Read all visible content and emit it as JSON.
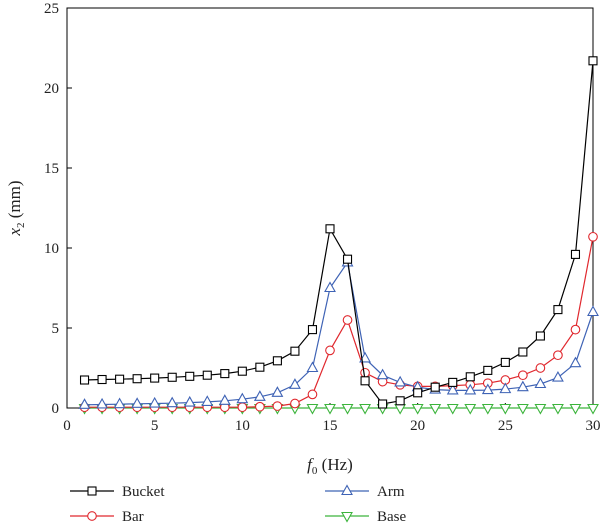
{
  "chart_data": {
    "type": "line",
    "xlabel": "Hz",
    "ylabel": "mm",
    "xlim": [
      0,
      30
    ],
    "ylim": [
      0,
      25
    ],
    "x_ticks": [
      "0",
      "5",
      "10",
      "15",
      "20",
      "25",
      "30"
    ],
    "y_ticks": [
      "0",
      "5",
      "10",
      "15",
      "20",
      "25"
    ],
    "legend_placement": "bottom",
    "x": [
      1,
      2,
      3,
      4,
      5,
      6,
      7,
      8,
      9,
      10,
      11,
      12,
      13,
      14,
      15,
      16,
      17,
      18,
      19,
      20,
      21,
      22,
      23,
      24,
      25,
      26,
      27,
      28,
      29,
      30
    ],
    "series": [
      {
        "name": "Bucket",
        "color": "#000000",
        "marker": "square",
        "values": [
          1.75,
          1.78,
          1.8,
          1.83,
          1.87,
          1.92,
          1.98,
          2.05,
          2.15,
          2.3,
          2.55,
          2.95,
          3.55,
          4.9,
          11.2,
          9.3,
          1.7,
          0.25,
          0.45,
          0.95,
          1.3,
          1.6,
          1.95,
          2.35,
          2.85,
          3.5,
          4.5,
          6.15,
          9.6,
          21.7
        ]
      },
      {
        "name": "Bar",
        "color": "#e0282e",
        "marker": "circle",
        "values": [
          0.05,
          0.05,
          0.05,
          0.05,
          0.05,
          0.05,
          0.05,
          0.05,
          0.05,
          0.05,
          0.08,
          0.12,
          0.28,
          0.85,
          3.6,
          5.5,
          2.2,
          1.65,
          1.45,
          1.35,
          1.35,
          1.4,
          1.45,
          1.55,
          1.75,
          2.05,
          2.5,
          3.3,
          4.9,
          10.7
        ]
      },
      {
        "name": "Arm",
        "color": "#3f63b5",
        "marker": "triangle-up",
        "values": [
          0.2,
          0.22,
          0.24,
          0.26,
          0.28,
          0.3,
          0.34,
          0.38,
          0.45,
          0.55,
          0.7,
          0.95,
          1.45,
          2.5,
          7.5,
          9.1,
          3.1,
          2.05,
          1.6,
          1.3,
          1.15,
          1.1,
          1.1,
          1.12,
          1.18,
          1.3,
          1.5,
          1.9,
          2.8,
          6.0
        ]
      },
      {
        "name": "Base",
        "color": "#3cb43c",
        "marker": "triangle-down",
        "values": [
          0,
          0,
          0,
          0,
          0,
          0,
          0,
          0,
          0,
          0,
          0,
          0,
          0,
          0,
          0,
          0,
          0,
          0,
          0,
          0,
          0,
          0,
          0,
          0,
          0,
          0,
          0,
          0,
          0,
          0
        ]
      }
    ]
  }
}
